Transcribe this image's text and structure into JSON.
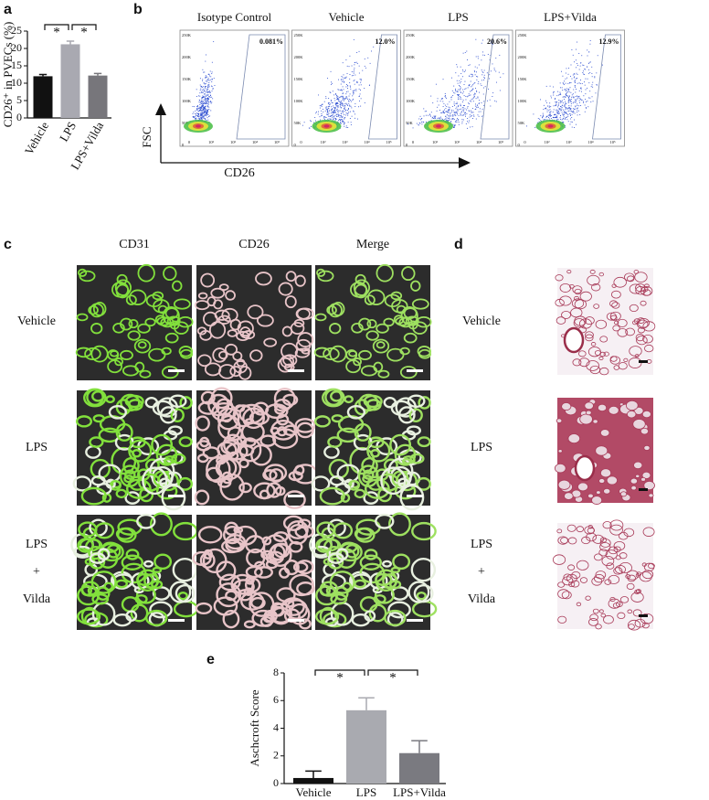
{
  "chart_data": [
    {
      "type": "bar",
      "panel": "a",
      "ylabel": "CD26⁺ in PVECs (%)",
      "categories": [
        "Vehicle",
        "LPS",
        "LPS+Vilda"
      ],
      "values": [
        12,
        21.2,
        12.2
      ],
      "errors": [
        0.5,
        0.9,
        0.6
      ],
      "colors": [
        "#111111",
        "#a9a9b1",
        "#77767b"
      ],
      "ylim": [
        0,
        25
      ],
      "yticks": [
        0,
        5,
        10,
        15,
        20,
        25
      ],
      "significance": [
        "*",
        "*"
      ]
    },
    {
      "type": "bar",
      "panel": "e",
      "ylabel": "Aschcroft Score",
      "categories": [
        "Vehicle",
        "LPS",
        "LPS+Vilda"
      ],
      "values": [
        0.4,
        5.3,
        2.2
      ],
      "errors": [
        0.5,
        0.9,
        0.9
      ],
      "colors": [
        "#111111",
        "#a9aab0",
        "#7a7a80"
      ],
      "ylim": [
        0,
        8
      ],
      "yticks": [
        0,
        2,
        4,
        6,
        8
      ],
      "significance": [
        "*",
        "*"
      ]
    }
  ],
  "flow": {
    "panel": "b",
    "x_label": "CD26",
    "y_label": "FSC",
    "yticks": [
      "250K",
      "200K",
      "150K",
      "100K",
      "50K",
      "0"
    ],
    "xticks": [
      "0",
      "10²",
      "10³",
      "10⁴",
      "10⁵"
    ],
    "plots": [
      {
        "title": "Isotype Control",
        "gate": "0.081%"
      },
      {
        "title": "Vehicle",
        "gate": "12.0%"
      },
      {
        "title": "LPS",
        "gate": "20.6%"
      },
      {
        "title": "LPS+Vilda",
        "gate": "12.9%"
      }
    ]
  },
  "immunofluorescence": {
    "panel": "c",
    "columns": [
      "CD31",
      "CD26",
      "Merge"
    ],
    "rows": [
      [
        "Vehicle"
      ],
      [
        "LPS"
      ],
      [
        "LPS",
        "+",
        "Vilda"
      ]
    ]
  },
  "histology": {
    "panel": "d",
    "rows": [
      [
        "Vehicle"
      ],
      [
        "LPS"
      ],
      [
        "LPS",
        "+",
        "Vilda"
      ]
    ]
  }
}
